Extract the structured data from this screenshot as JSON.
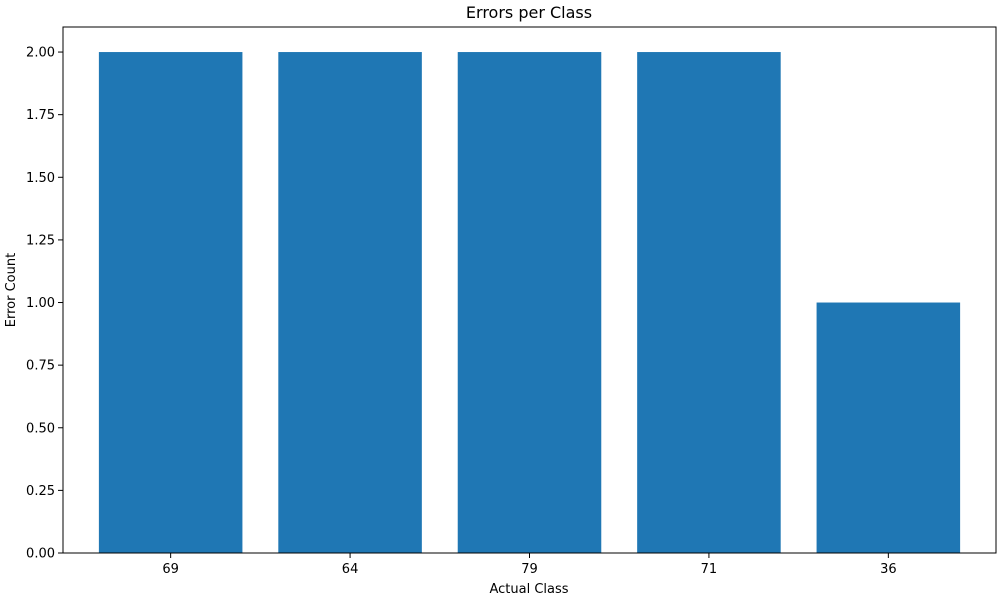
{
  "chart_data": {
    "type": "bar",
    "title": "Errors per Class",
    "xlabel": "Actual Class",
    "ylabel": "Error Count",
    "categories": [
      "69",
      "64",
      "79",
      "71",
      "36"
    ],
    "values": [
      2,
      2,
      2,
      2,
      1
    ],
    "ylim": [
      0,
      2.1
    ],
    "yticks": [
      "0.00",
      "0.25",
      "0.50",
      "0.75",
      "1.00",
      "1.25",
      "1.50",
      "1.75",
      "2.00"
    ],
    "bar_color": "#1f77b4",
    "grid": false
  }
}
